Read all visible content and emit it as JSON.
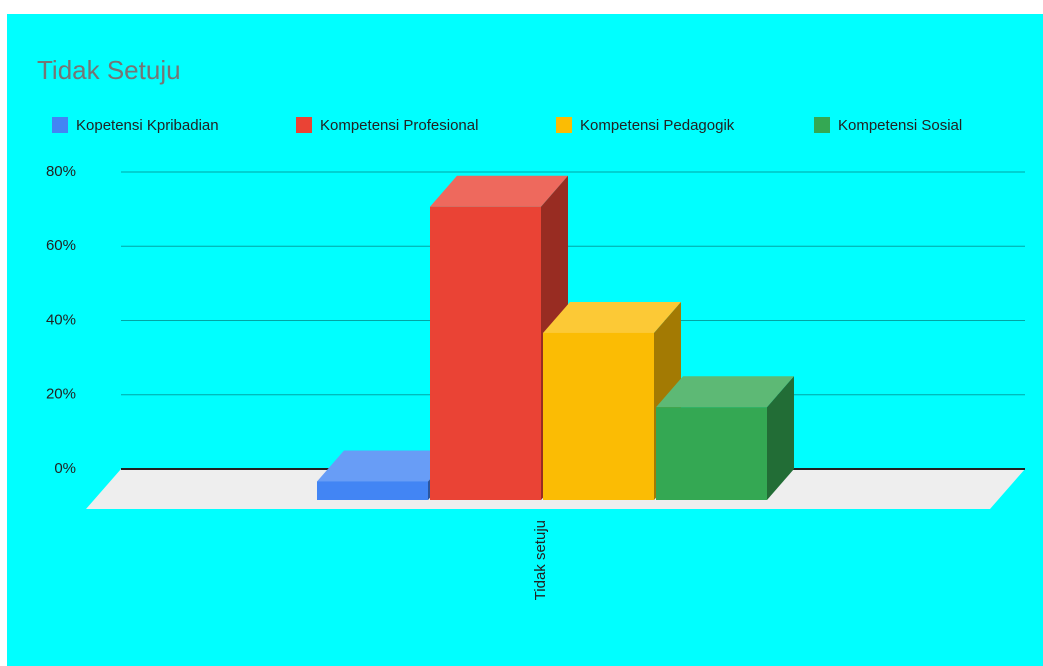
{
  "chart_data": {
    "type": "bar3d",
    "title": "Tidak Setuju",
    "categories": [
      "Tidak setuju"
    ],
    "series": [
      {
        "name": "Kopetensi Kpribadian",
        "color": "#4285f4",
        "values": [
          5
        ]
      },
      {
        "name": "Kompetensi Profesional",
        "color": "#ea4335",
        "values": [
          79
        ]
      },
      {
        "name": "Kompetensi Pedagogik",
        "color": "#fbbc04",
        "values": [
          45
        ]
      },
      {
        "name": "Kompetensi Sosial",
        "color": "#34a853",
        "values": [
          25
        ]
      }
    ],
    "ylim": [
      0,
      80
    ],
    "yticks": [
      {
        "value": 0,
        "label": "0%"
      },
      {
        "value": 20,
        "label": "20%"
      },
      {
        "value": 40,
        "label": "40%"
      },
      {
        "value": 60,
        "label": "60%"
      },
      {
        "value": 80,
        "label": "80%"
      }
    ],
    "grid": true,
    "legend": "top"
  }
}
